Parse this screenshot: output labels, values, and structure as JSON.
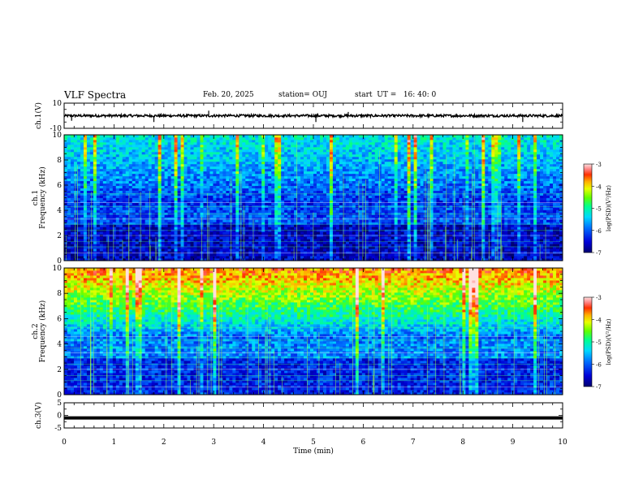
{
  "header": {
    "title": "VLF Spectra",
    "date": "Feb. 20, 2025",
    "station": "station= OUJ",
    "start": "start  UT =   16: 40: 0"
  },
  "chart_data": [
    {
      "type": "line",
      "id": "ch1-waveform",
      "ylabel": "ch.1(V)",
      "ylim": [
        -10,
        10
      ],
      "yticks": [
        10,
        -10
      ],
      "xlim": [
        0,
        10
      ],
      "approx_level": 0,
      "approx_noise_amplitude": 1,
      "spikes": [
        {
          "x": 0.15,
          "y": -4
        },
        {
          "x": 1.8,
          "y": -5
        },
        {
          "x": 2.9,
          "y": 4
        },
        {
          "x": 5.05,
          "y": -5
        },
        {
          "x": 5.7,
          "y": 3
        },
        {
          "x": 9.2,
          "y": -5
        }
      ]
    },
    {
      "type": "heatmap",
      "id": "ch1-spectrogram",
      "ylabel": "ch.1\nFrequency (kHz)",
      "ylim": [
        0,
        10
      ],
      "yticks": [
        0,
        2,
        4,
        6,
        8,
        10
      ],
      "xlim": [
        0,
        10
      ],
      "colorbar": {
        "label": "log(PSD)(V²/Hz)",
        "range": [
          -7,
          -3
        ],
        "ticks": [
          -3,
          -4,
          -5,
          -6,
          -7
        ]
      },
      "approx_background_logpsd": -6.3,
      "high_freq_logpsd": -5.2
    },
    {
      "type": "heatmap",
      "id": "ch2-spectrogram",
      "ylabel": "ch.2\nFrequency (kHz)",
      "ylim": [
        0,
        10
      ],
      "yticks": [
        0,
        2,
        4,
        6,
        8,
        10
      ],
      "xlim": [
        0,
        10
      ],
      "colorbar": {
        "label": "log(PSD)(V²/Hz)",
        "range": [
          -7,
          -3
        ],
        "ticks": [
          -3,
          -4,
          -5,
          -6,
          -7
        ]
      },
      "approx_background_logpsd": -6.0,
      "high_freq_logpsd": -3.6
    },
    {
      "type": "line",
      "id": "ch3-waveform",
      "ylabel": "ch.3(V)",
      "ylim": [
        -5,
        5
      ],
      "yticks": [
        5,
        0,
        -5
      ],
      "xlim": [
        0,
        10
      ],
      "xticks": [
        0,
        1,
        2,
        3,
        4,
        5,
        6,
        7,
        8,
        9,
        10
      ],
      "xlabel": "Time (min)",
      "approx_level": -1
    }
  ]
}
